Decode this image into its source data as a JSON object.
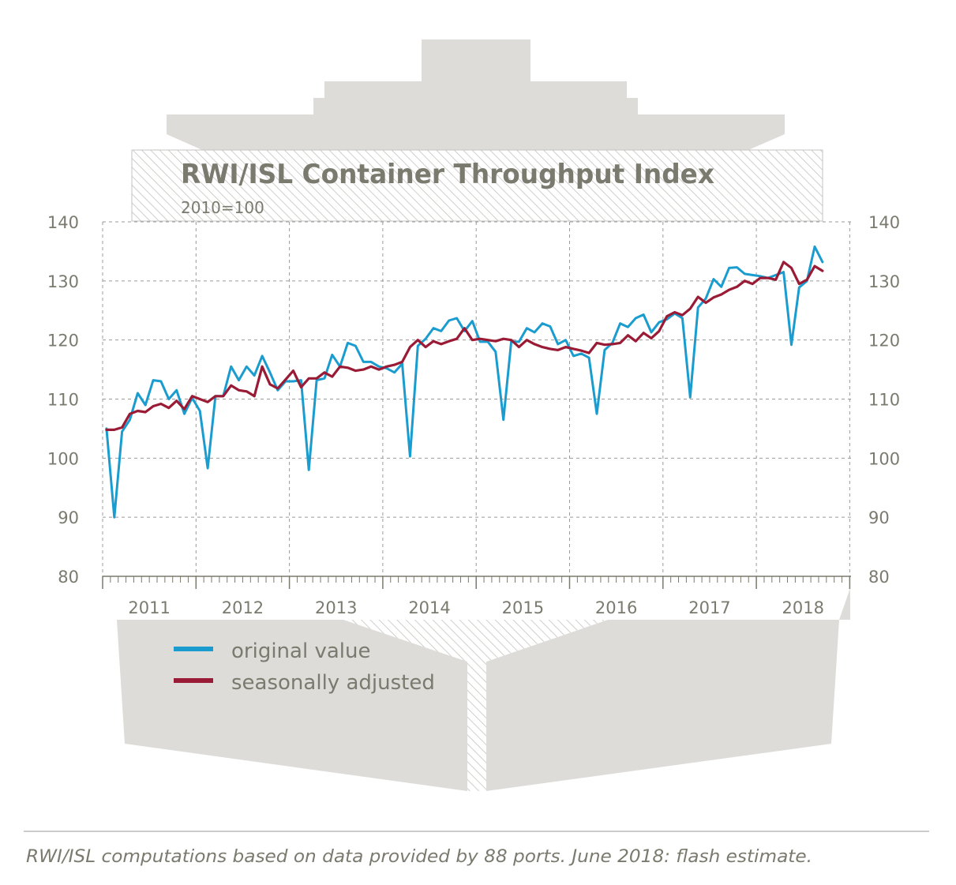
{
  "chart_data": {
    "type": "line",
    "title": "RWI/ISL Container Throughput Index",
    "subtitle": "2010=100",
    "footnote": "RWI/ISL computations based on data provided by 88 ports. June 2018: flash estimate.",
    "x_start": "2011-01",
    "ylim": [
      80,
      140
    ],
    "yticks": [
      80,
      90,
      100,
      110,
      120,
      130,
      140
    ],
    "year_labels": [
      "2011",
      "2012",
      "2013",
      "2014",
      "2015",
      "2016",
      "2017",
      "2018"
    ],
    "grid": true,
    "legend_position": "bottom-left",
    "colors": {
      "original": "#1a9ccf",
      "adjusted": "#9a1b35",
      "grid": "#9a9a9a",
      "ship": "#dddcd8",
      "hatch": "#c4c3bf",
      "text": "#7a7a6e"
    },
    "series": [
      {
        "name": "original value",
        "color": "#1a9ccf",
        "values": [
          105,
          90,
          104.5,
          106.5,
          111,
          109,
          113.2,
          113,
          110,
          111.5,
          107.5,
          110.2,
          108,
          98.3,
          110.5,
          110.5,
          115.5,
          113.2,
          115.5,
          114,
          117.3,
          114.5,
          111.5,
          113,
          113,
          113.2,
          98,
          113.2,
          113.5,
          117.5,
          115.5,
          119.5,
          119,
          116.3,
          116.3,
          115.5,
          115.2,
          114.5,
          116,
          100.3,
          119,
          120.2,
          122,
          121.5,
          123.3,
          123.7,
          121.5,
          123.2,
          119.7,
          119.7,
          118,
          106.5,
          119.7,
          119.7,
          122,
          121.3,
          122.8,
          122.3,
          119.3,
          120,
          117.3,
          117.7,
          117,
          107.5,
          118.3,
          119.5,
          122.8,
          122.2,
          123.7,
          124.3,
          121.3,
          123,
          123.5,
          124.5,
          123.7,
          110.3,
          125.5,
          127,
          130.3,
          129,
          132.2,
          132.3,
          131.2,
          131,
          130.8,
          130.5,
          131,
          131.5,
          119.2,
          128.9,
          130,
          135.8,
          133.2
        ]
      },
      {
        "name": "seasonally adjusted",
        "color": "#9a1b35",
        "values": [
          104.8,
          104.8,
          105.2,
          107.5,
          108,
          107.8,
          108.8,
          109.2,
          108.5,
          109.7,
          108.3,
          110.5,
          110,
          109.5,
          110.5,
          110.5,
          112.3,
          111.5,
          111.3,
          110.5,
          115.5,
          112.5,
          111.8,
          113.3,
          114.8,
          112,
          113.5,
          113.5,
          114.5,
          113.8,
          115.5,
          115.3,
          114.8,
          115,
          115.5,
          115,
          115.5,
          115.8,
          116.3,
          118.8,
          120,
          118.8,
          119.8,
          119.3,
          119.8,
          120.2,
          122,
          120,
          120.2,
          120,
          119.8,
          120.2,
          120,
          118.8,
          120,
          119.3,
          118.8,
          118.5,
          118.3,
          118.8,
          118.5,
          118.2,
          117.8,
          119.5,
          119.2,
          119.3,
          119.5,
          120.8,
          119.8,
          121.2,
          120.3,
          121.5,
          124,
          124.7,
          124.2,
          125.3,
          127.3,
          126.3,
          127.2,
          127.7,
          128.5,
          129,
          130,
          129.5,
          130.5,
          130.5,
          130.2,
          133.2,
          132.2,
          129.5,
          130.2,
          132.5,
          131.7
        ]
      }
    ]
  }
}
